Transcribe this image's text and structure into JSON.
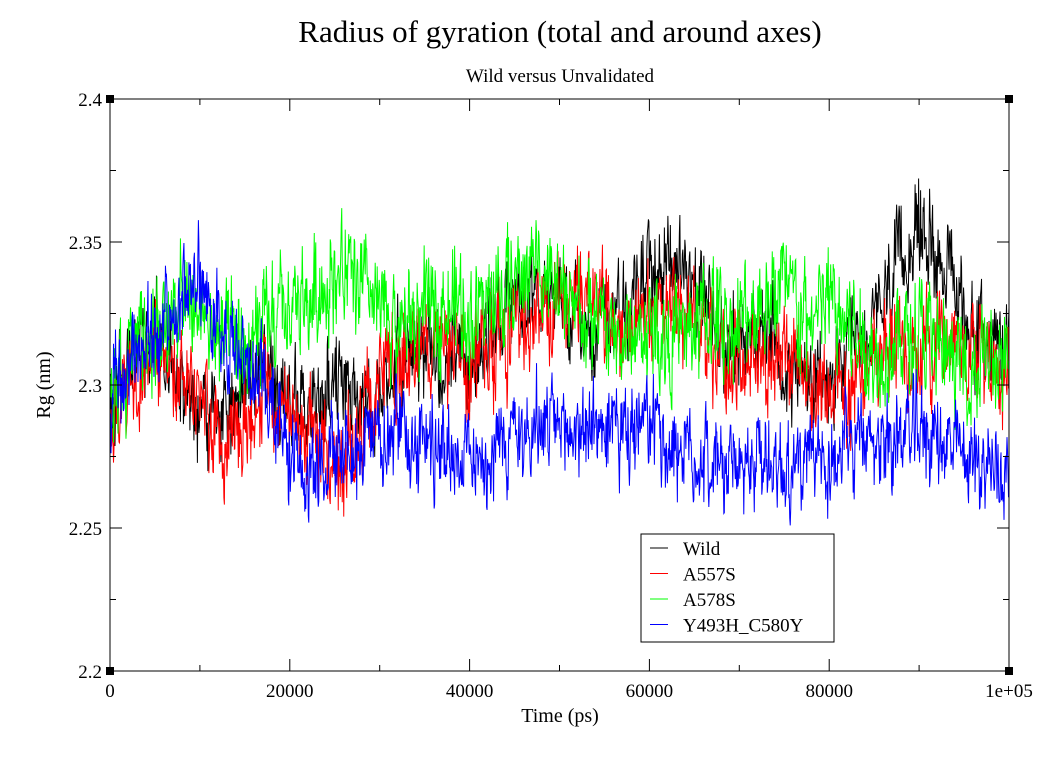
{
  "chart_data": {
    "type": "line",
    "title": "Radius of gyration (total and around axes)",
    "subtitle": "Wild versus Unvalidated",
    "xlabel": "Time (ps)",
    "ylabel": "Rg (nm)",
    "xlim": [
      0,
      100000
    ],
    "ylim": [
      2.2,
      2.4
    ],
    "x_ticks": [
      {
        "value": 0,
        "label": "0"
      },
      {
        "value": 20000,
        "label": "20000"
      },
      {
        "value": 40000,
        "label": "40000"
      },
      {
        "value": 60000,
        "label": "60000"
      },
      {
        "value": 80000,
        "label": "80000"
      },
      {
        "value": 100000,
        "label": "1e+05"
      }
    ],
    "y_ticks": [
      {
        "value": 2.2,
        "label": "2.2"
      },
      {
        "value": 2.25,
        "label": "2.25"
      },
      {
        "value": 2.3,
        "label": "2.3"
      },
      {
        "value": 2.35,
        "label": "2.35"
      },
      {
        "value": 2.4,
        "label": "2.4"
      }
    ],
    "grid": false,
    "legend_position": "bottom-center-right",
    "x": [
      0,
      2500,
      5000,
      7500,
      10000,
      12500,
      15000,
      17500,
      20000,
      22500,
      25000,
      27500,
      30000,
      32500,
      35000,
      37500,
      40000,
      42500,
      45000,
      47500,
      50000,
      52500,
      55000,
      57500,
      60000,
      62500,
      65000,
      67500,
      70000,
      72500,
      75000,
      77500,
      80000,
      82500,
      85000,
      87500,
      90000,
      92500,
      95000,
      97500,
      100000
    ],
    "series": [
      {
        "name": "Wild",
        "color": "#000000",
        "noise": 0.012,
        "values": [
          2.29,
          2.31,
          2.32,
          2.305,
          2.29,
          2.285,
          2.3,
          2.305,
          2.295,
          2.29,
          2.3,
          2.295,
          2.3,
          2.31,
          2.315,
          2.305,
          2.31,
          2.32,
          2.33,
          2.335,
          2.33,
          2.32,
          2.325,
          2.33,
          2.34,
          2.345,
          2.335,
          2.32,
          2.315,
          2.32,
          2.31,
          2.3,
          2.3,
          2.31,
          2.32,
          2.34,
          2.355,
          2.345,
          2.325,
          2.315,
          2.32
        ]
      },
      {
        "name": "A557S",
        "color": "#ff0000",
        "noise": 0.013,
        "values": [
          2.28,
          2.3,
          2.31,
          2.3,
          2.295,
          2.28,
          2.29,
          2.3,
          2.29,
          2.28,
          2.275,
          2.28,
          2.3,
          2.31,
          2.315,
          2.31,
          2.305,
          2.315,
          2.32,
          2.325,
          2.33,
          2.335,
          2.33,
          2.32,
          2.325,
          2.33,
          2.32,
          2.31,
          2.305,
          2.31,
          2.305,
          2.3,
          2.295,
          2.3,
          2.31,
          2.315,
          2.31,
          2.32,
          2.315,
          2.31,
          2.305
        ]
      },
      {
        "name": "A578S",
        "color": "#00ff00",
        "noise": 0.014,
        "values": [
          2.3,
          2.31,
          2.32,
          2.33,
          2.325,
          2.315,
          2.31,
          2.32,
          2.325,
          2.33,
          2.34,
          2.335,
          2.325,
          2.32,
          2.325,
          2.33,
          2.325,
          2.33,
          2.335,
          2.345,
          2.33,
          2.325,
          2.32,
          2.315,
          2.32,
          2.315,
          2.32,
          2.325,
          2.32,
          2.33,
          2.335,
          2.32,
          2.33,
          2.32,
          2.31,
          2.315,
          2.32,
          2.31,
          2.305,
          2.31,
          2.3
        ]
      },
      {
        "name": "Y493H_C580Y",
        "color": "#0000ff",
        "noise": 0.012,
        "values": [
          2.29,
          2.31,
          2.32,
          2.325,
          2.335,
          2.32,
          2.31,
          2.3,
          2.275,
          2.27,
          2.28,
          2.275,
          2.28,
          2.285,
          2.28,
          2.278,
          2.275,
          2.278,
          2.282,
          2.285,
          2.283,
          2.285,
          2.285,
          2.282,
          2.285,
          2.28,
          2.275,
          2.272,
          2.27,
          2.275,
          2.272,
          2.27,
          2.275,
          2.278,
          2.28,
          2.282,
          2.285,
          2.28,
          2.275,
          2.272,
          2.27
        ]
      }
    ]
  }
}
